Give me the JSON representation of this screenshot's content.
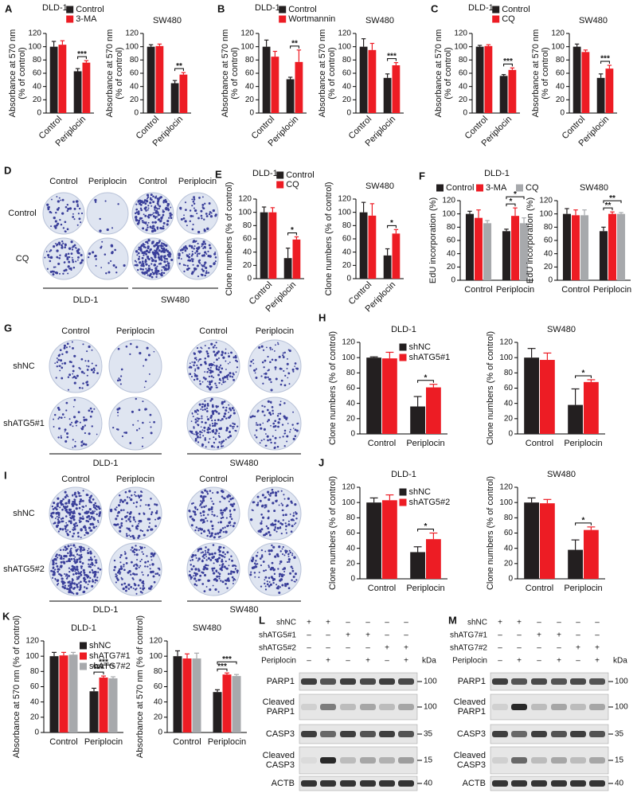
{
  "chart_data": [
    {
      "type": "bar",
      "panel": "A",
      "title": "DLD-1",
      "ylabel": [
        "Absorbance at 570 nm",
        "(% of control)"
      ],
      "categories": [
        "Control",
        "Periplocin"
      ],
      "xtick_rotation": 45,
      "legend": "top",
      "series": [
        {
          "name": "Control",
          "color": "#231f20",
          "values": [
            100,
            63
          ],
          "errors": [
            8,
            4
          ]
        },
        {
          "name": "3-MA",
          "color": "#ed1c24",
          "values": [
            103,
            76
          ],
          "errors": [
            6,
            3
          ]
        }
      ],
      "ylim": [
        0,
        120
      ],
      "yticks": [
        0,
        20,
        40,
        60,
        80,
        100,
        120
      ],
      "annotations": [
        "***"
      ]
    },
    {
      "type": "bar",
      "title": "SW480",
      "ylabel": [
        "Absorbance at 570 nm",
        "(% of control)"
      ],
      "categories": [
        "Control",
        "Periplocin"
      ],
      "xtick_rotation": 45,
      "series": [
        {
          "name": "Control",
          "color": "#231f20",
          "values": [
            100,
            45
          ],
          "errors": [
            3,
            4
          ]
        },
        {
          "name": "3-MA",
          "color": "#ed1c24",
          "values": [
            101,
            58
          ],
          "errors": [
            3,
            3
          ]
        }
      ],
      "ylim": [
        0,
        120
      ],
      "yticks": [
        0,
        20,
        40,
        60,
        80,
        100,
        120
      ],
      "annotations": [
        "**"
      ]
    },
    {
      "type": "bar",
      "panel": "B",
      "title": "DLD-1",
      "ylabel": [
        "Absorbance at 570 nm",
        "(% of control)"
      ],
      "categories": [
        "Control",
        "Periplocin"
      ],
      "xtick_rotation": 45,
      "legend": "top",
      "series": [
        {
          "name": "Control",
          "color": "#231f20",
          "values": [
            100,
            51
          ],
          "errors": [
            10,
            3
          ]
        },
        {
          "name": "Wortmannin",
          "color": "#ed1c24",
          "values": [
            85,
            77
          ],
          "errors": [
            8,
            18
          ]
        }
      ],
      "ylim": [
        0,
        120
      ],
      "yticks": [
        0,
        20,
        40,
        60,
        80,
        100,
        120
      ],
      "annotations": [
        "**"
      ]
    },
    {
      "type": "bar",
      "title": "SW480",
      "ylabel": [
        "Absorbance at 570 nm",
        "(% of control)"
      ],
      "categories": [
        "Control",
        "Periplocin"
      ],
      "xtick_rotation": 45,
      "series": [
        {
          "name": "Control",
          "color": "#231f20",
          "values": [
            100,
            53
          ],
          "errors": [
            12,
            6
          ]
        },
        {
          "name": "Wortmannin",
          "color": "#ed1c24",
          "values": [
            95,
            72
          ],
          "errors": [
            10,
            4
          ]
        }
      ],
      "ylim": [
        0,
        120
      ],
      "yticks": [
        0,
        20,
        40,
        60,
        80,
        100,
        120
      ],
      "annotations": [
        "***"
      ]
    },
    {
      "type": "bar",
      "panel": "C",
      "title": "DLD-1",
      "ylabel": [
        "Absorbance at 570 nm",
        "(% of control)"
      ],
      "categories": [
        "Control",
        "Periplocin"
      ],
      "xtick_rotation": 45,
      "legend": "top",
      "series": [
        {
          "name": "Control",
          "color": "#231f20",
          "values": [
            100,
            56
          ],
          "errors": [
            2,
            2
          ]
        },
        {
          "name": "CQ",
          "color": "#ed1c24",
          "values": [
            101,
            65
          ],
          "errors": [
            2,
            3
          ]
        }
      ],
      "ylim": [
        0,
        120
      ],
      "yticks": [
        0,
        20,
        40,
        60,
        80,
        100,
        120
      ],
      "annotations": [
        "***"
      ]
    },
    {
      "type": "bar",
      "title": "SW480",
      "ylabel": [
        "Absorbance at 570 nm",
        "(% of control)"
      ],
      "categories": [
        "Control",
        "Periplocin"
      ],
      "xtick_rotation": 45,
      "series": [
        {
          "name": "Control",
          "color": "#231f20",
          "values": [
            100,
            53
          ],
          "errors": [
            4,
            6
          ]
        },
        {
          "name": "CQ",
          "color": "#ed1c24",
          "values": [
            92,
            67
          ],
          "errors": [
            3,
            5
          ]
        }
      ],
      "ylim": [
        0,
        120
      ],
      "yticks": [
        0,
        20,
        40,
        60,
        80,
        100,
        120
      ],
      "annotations": [
        "***"
      ]
    },
    {
      "type": "bar",
      "panel": "E",
      "title": "DLD-1",
      "ylabel": "Clone numbers (% of control)",
      "categories": [
        "Control",
        "Periplocin"
      ],
      "xtick_rotation": 45,
      "legend": "top",
      "series": [
        {
          "name": "Control",
          "color": "#231f20",
          "values": [
            100,
            31
          ],
          "errors": [
            8,
            15
          ]
        },
        {
          "name": "CQ",
          "color": "#ed1c24",
          "values": [
            100,
            59
          ],
          "errors": [
            7,
            4
          ]
        }
      ],
      "ylim": [
        0,
        120
      ],
      "yticks": [
        0,
        20,
        40,
        60,
        80,
        100,
        120
      ],
      "annotations": [
        "*"
      ]
    },
    {
      "type": "bar",
      "title": "SW480",
      "ylabel": "Clone numbers (% of control)",
      "categories": [
        "Control",
        "Periplocin"
      ],
      "xtick_rotation": 45,
      "series": [
        {
          "name": "Control",
          "color": "#231f20",
          "values": [
            100,
            35
          ],
          "errors": [
            15,
            10
          ]
        },
        {
          "name": "CQ",
          "color": "#ed1c24",
          "values": [
            95,
            68
          ],
          "errors": [
            18,
            6
          ]
        }
      ],
      "ylim": [
        0,
        120
      ],
      "yticks": [
        0,
        20,
        40,
        60,
        80,
        100,
        120
      ],
      "annotations": [
        "*"
      ]
    },
    {
      "type": "bar",
      "panel": "F",
      "title": "DLD-1",
      "ylabel": "EdU incorporation (%)",
      "categories": [
        "Control",
        "Periplocin"
      ],
      "legend": "top-row",
      "series": [
        {
          "name": "Control",
          "color": "#231f20",
          "values": [
            100,
            74
          ],
          "errors": [
            4,
            3
          ]
        },
        {
          "name": "3-MA",
          "color": "#ed1c24",
          "values": [
            94,
            97
          ],
          "errors": [
            12,
            12
          ]
        },
        {
          "name": "CQ",
          "color": "#a7a9ac",
          "values": [
            86,
            86
          ],
          "errors": [
            4,
            8
          ]
        }
      ],
      "ylim": [
        0,
        120
      ],
      "yticks": [
        0,
        20,
        40,
        60,
        80,
        100,
        120
      ],
      "annotations": [
        "*",
        "*"
      ]
    },
    {
      "type": "bar",
      "title": "SW480",
      "ylabel": "EdU incorporation (%)",
      "categories": [
        "Control",
        "Periplocin"
      ],
      "series": [
        {
          "name": "Control",
          "color": "#231f20",
          "values": [
            100,
            74
          ],
          "errors": [
            8,
            6
          ]
        },
        {
          "name": "3-MA",
          "color": "#ed1c24",
          "values": [
            98,
            100
          ],
          "errors": [
            8,
            3
          ]
        },
        {
          "name": "CQ",
          "color": "#a7a9ac",
          "values": [
            98,
            100
          ],
          "errors": [
            8,
            2
          ]
        }
      ],
      "ylim": [
        0,
        120
      ],
      "yticks": [
        0,
        20,
        40,
        60,
        80,
        100,
        120
      ],
      "annotations": [
        "**",
        "**"
      ]
    },
    {
      "type": "bar",
      "panel": "H",
      "title": "DLD-1",
      "ylabel": "Clone numbers (% of control)",
      "categories": [
        "Control",
        "Periplocin"
      ],
      "legend": "upper right",
      "series": [
        {
          "name": "shNC",
          "color": "#231f20",
          "values": [
            100,
            36
          ],
          "errors": [
            1,
            13
          ]
        },
        {
          "name": "shATG5#1",
          "color": "#ed1c24",
          "values": [
            99,
            61
          ],
          "errors": [
            8,
            4
          ]
        }
      ],
      "ylim": [
        0,
        120
      ],
      "yticks": [
        0,
        20,
        40,
        60,
        80,
        100,
        120
      ],
      "annotations": [
        "*"
      ]
    },
    {
      "type": "bar",
      "title": "SW480",
      "ylabel": "Clone numbers (% of control)",
      "categories": [
        "Control",
        "Periplocin"
      ],
      "series": [
        {
          "name": "shNC",
          "color": "#231f20",
          "values": [
            100,
            38
          ],
          "errors": [
            12,
            21
          ]
        },
        {
          "name": "shATG5#1",
          "color": "#ed1c24",
          "values": [
            97,
            68
          ],
          "errors": [
            9,
            3
          ]
        }
      ],
      "ylim": [
        0,
        120
      ],
      "yticks": [
        0,
        20,
        40,
        60,
        80,
        100,
        120
      ],
      "annotations": [
        "*"
      ]
    },
    {
      "type": "bar",
      "panel": "J",
      "title": "DLD-1",
      "ylabel": "Clone numbers (% of control)",
      "categories": [
        "Control",
        "Periplocin"
      ],
      "legend": "upper right",
      "series": [
        {
          "name": "shNC",
          "color": "#231f20",
          "values": [
            100,
            35
          ],
          "errors": [
            6,
            7
          ]
        },
        {
          "name": "shATG5#2",
          "color": "#ed1c24",
          "values": [
            103,
            52
          ],
          "errors": [
            7,
            8
          ]
        }
      ],
      "ylim": [
        0,
        120
      ],
      "yticks": [
        0,
        20,
        40,
        60,
        80,
        100,
        120
      ],
      "annotations": [
        "*"
      ]
    },
    {
      "type": "bar",
      "title": "SW480",
      "ylabel": "Clone numbers (% of control)",
      "categories": [
        "Control",
        "Periplocin"
      ],
      "series": [
        {
          "name": "shNC",
          "color": "#231f20",
          "values": [
            100,
            38
          ],
          "errors": [
            6,
            13
          ]
        },
        {
          "name": "shATG5#2",
          "color": "#ed1c24",
          "values": [
            99,
            64
          ],
          "errors": [
            5,
            4
          ]
        }
      ],
      "ylim": [
        0,
        120
      ],
      "yticks": [
        0,
        20,
        40,
        60,
        80,
        100,
        120
      ],
      "annotations": [
        "*"
      ]
    },
    {
      "type": "bar",
      "panel": "K",
      "title": "DLD-1",
      "ylabel": "Absorbance at 570 nm (% of control)",
      "categories": [
        "Control",
        "Periplocin"
      ],
      "legend": "upper right",
      "series": [
        {
          "name": "shNC",
          "color": "#231f20",
          "values": [
            100,
            54
          ],
          "errors": [
            5,
            4
          ]
        },
        {
          "name": "shATG7#1",
          "color": "#ed1c24",
          "values": [
            101,
            72
          ],
          "errors": [
            4,
            2
          ]
        },
        {
          "name": "shATG7#2",
          "color": "#a7a9ac",
          "values": [
            102,
            71
          ],
          "errors": [
            3,
            2
          ]
        }
      ],
      "ylim": [
        0,
        120
      ],
      "yticks": [
        0,
        20,
        40,
        60,
        80,
        100,
        120
      ],
      "annotations": [
        "***",
        "***"
      ]
    },
    {
      "type": "bar",
      "title": "SW480",
      "ylabel": "Absorbance at 570 nm (% of control)",
      "categories": [
        "Control",
        "Periplocin"
      ],
      "series": [
        {
          "name": "shNC",
          "color": "#231f20",
          "values": [
            100,
            53
          ],
          "errors": [
            7,
            3
          ]
        },
        {
          "name": "shATG7#1",
          "color": "#ed1c24",
          "values": [
            97,
            76
          ],
          "errors": [
            6,
            2
          ]
        },
        {
          "name": "shATG7#2",
          "color": "#a7a9ac",
          "values": [
            97,
            74
          ],
          "errors": [
            7,
            2
          ]
        }
      ],
      "ylim": [
        0,
        120
      ],
      "yticks": [
        0,
        20,
        40,
        60,
        80,
        100,
        120
      ],
      "annotations": [
        "***",
        "***"
      ]
    }
  ],
  "image_panels": [
    {
      "panel": "D",
      "columns": [
        "Control",
        "Periplocin",
        "Control",
        "Periplocin"
      ],
      "rows": [
        "Control",
        "CQ"
      ],
      "groups": [
        "DLD-1",
        "SW480"
      ]
    },
    {
      "panel": "G",
      "columns": [
        "Control",
        "Periplocin",
        "Control",
        "Periplocin"
      ],
      "rows": [
        "shNC",
        "shATG5#1"
      ],
      "groups": [
        "DLD-1",
        "SW480"
      ]
    },
    {
      "panel": "I",
      "columns": [
        "Control",
        "Periplocin",
        "Control",
        "Periplocin"
      ],
      "rows": [
        "shNC",
        "shATG5#2"
      ],
      "groups": [
        "DLD-1",
        "SW480"
      ]
    }
  ],
  "blots": [
    {
      "panel": "L",
      "kda": "kDa",
      "conditions": [
        {
          "label": "shNC",
          "signs": [
            "+",
            "+",
            "–",
            "–",
            "–",
            "–"
          ]
        },
        {
          "label": "shATG5#1",
          "signs": [
            "–",
            "–",
            "+",
            "+",
            "–",
            "–"
          ]
        },
        {
          "label": "shATG5#2",
          "signs": [
            "–",
            "–",
            "–",
            "–",
            "+",
            "+"
          ]
        },
        {
          "label": "Periplocin",
          "signs": [
            "–",
            "+",
            "–",
            "+",
            "–",
            "+"
          ]
        }
      ],
      "bands": [
        {
          "label": [
            "PARP1"
          ],
          "marker": 100
        },
        {
          "label": [
            "Cleaved",
            "PARP1"
          ],
          "marker": 100
        },
        {
          "label": [
            "CASP3"
          ],
          "marker": 35
        },
        {
          "label": [
            "Cleaved",
            "CASP3"
          ],
          "marker": 15
        },
        {
          "label": [
            "ACTB"
          ],
          "marker": 40
        }
      ]
    },
    {
      "panel": "M",
      "kda": "kDa",
      "conditions": [
        {
          "label": "shNC",
          "signs": [
            "+",
            "+",
            "–",
            "–",
            "–",
            "–"
          ]
        },
        {
          "label": "shATG7#1",
          "signs": [
            "–",
            "–",
            "+",
            "+",
            "–",
            "–"
          ]
        },
        {
          "label": "shATG7#2",
          "signs": [
            "–",
            "–",
            "–",
            "–",
            "+",
            "+"
          ]
        },
        {
          "label": "Periplocin",
          "signs": [
            "–",
            "+",
            "–",
            "+",
            "–",
            "+"
          ]
        }
      ],
      "bands": [
        {
          "label": [
            "PARP1"
          ],
          "marker": 100
        },
        {
          "label": [
            "Cleaved",
            "PARP1"
          ],
          "marker": 100
        },
        {
          "label": [
            "CASP3"
          ],
          "marker": 35
        },
        {
          "label": [
            "Cleaved",
            "CASP3"
          ],
          "marker": 15
        },
        {
          "label": [
            "ACTB"
          ],
          "marker": 40
        }
      ]
    }
  ]
}
